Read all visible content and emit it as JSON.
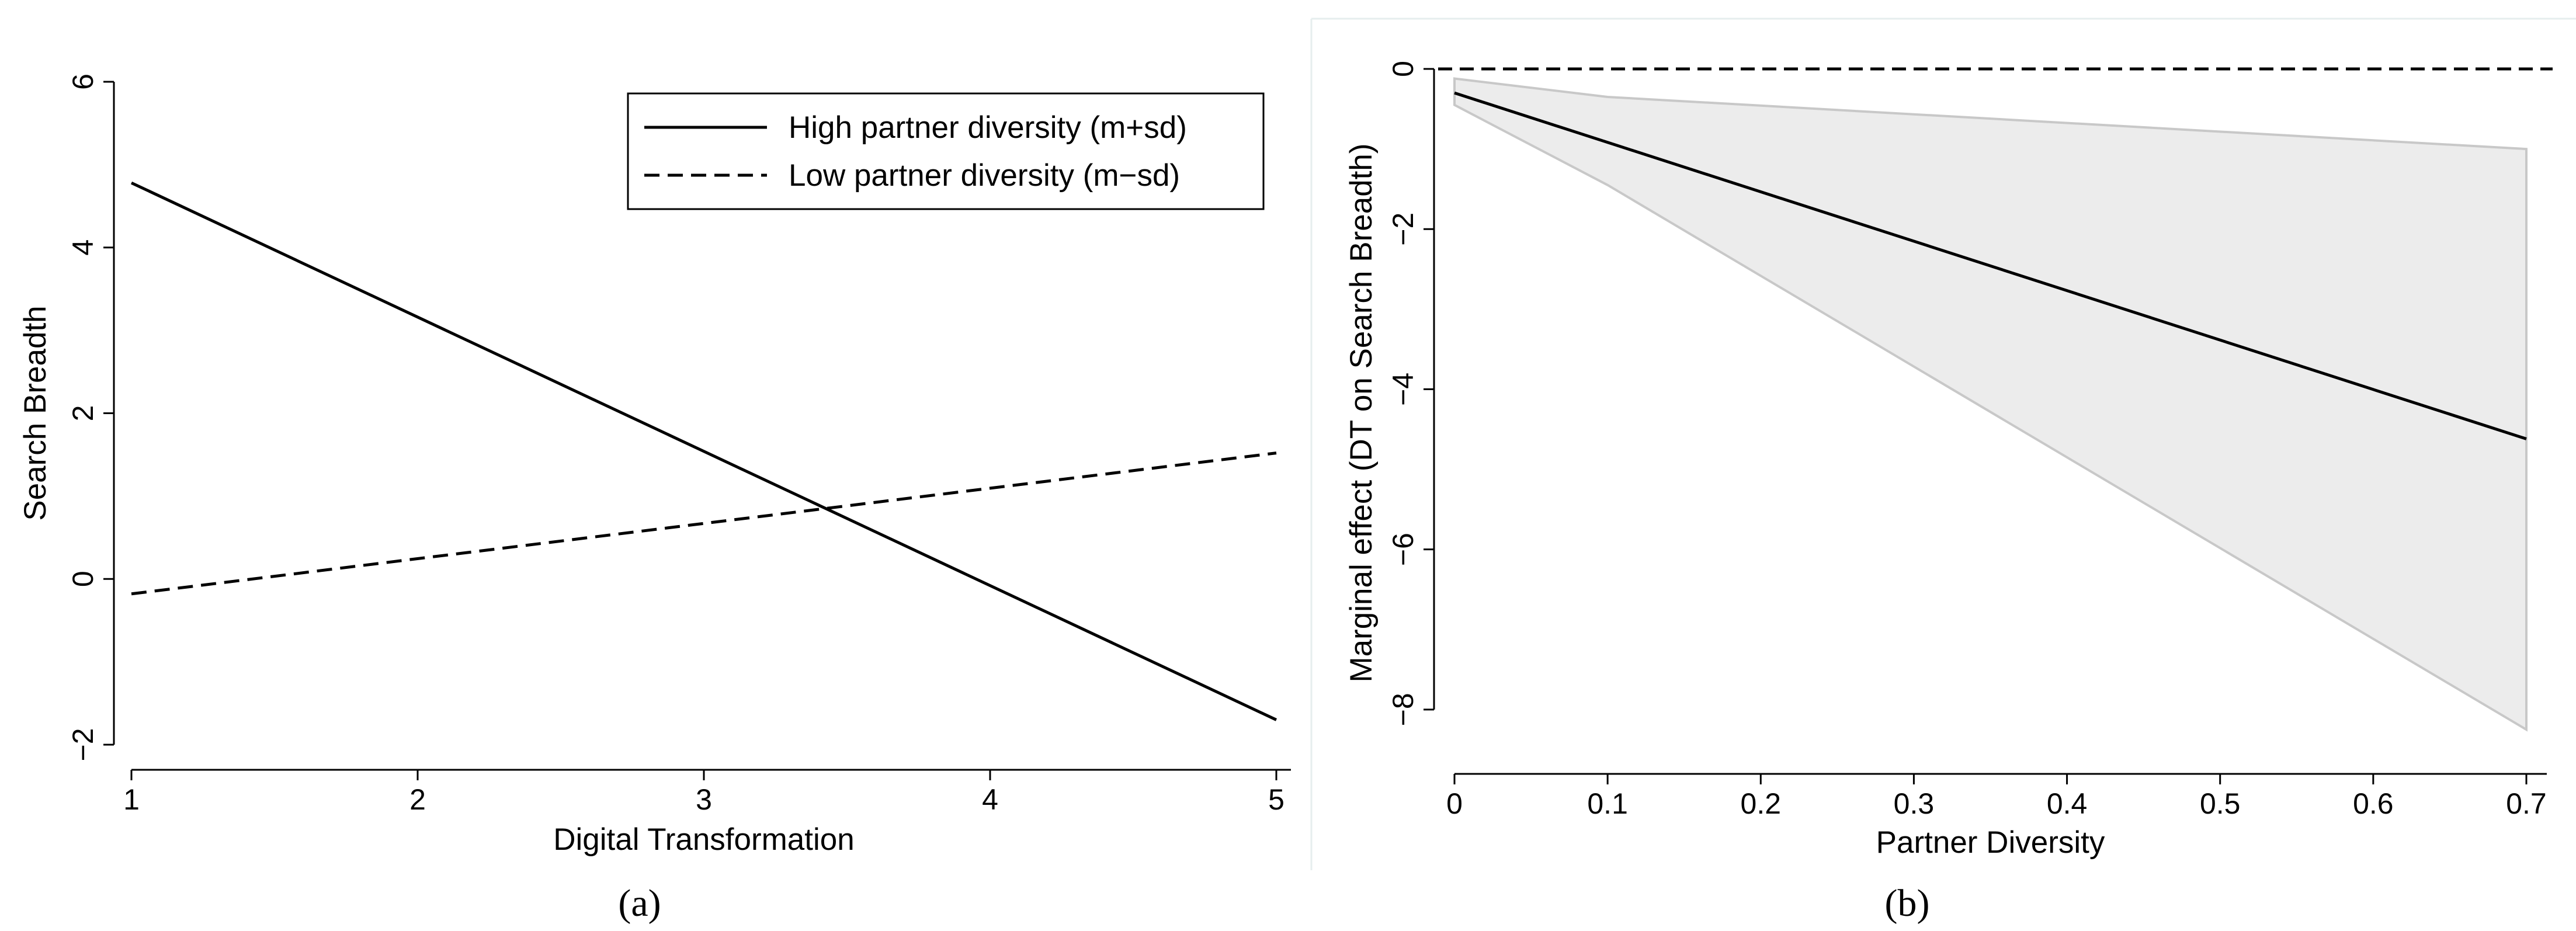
{
  "chart_data": [
    {
      "type": "line",
      "panel_label": "(a)",
      "xlabel": "Digital Transformation",
      "ylabel": "Search Breadth",
      "xlim": [
        1,
        5
      ],
      "ylim": [
        -2,
        6
      ],
      "xticks": [
        "1",
        "2",
        "3",
        "4",
        "5"
      ],
      "yticks": [
        "−2",
        "0",
        "2",
        "4",
        "6"
      ],
      "grid": false,
      "legend_position": "top-right",
      "series": [
        {
          "name": "High partner diversity (m+sd)",
          "style": "solid",
          "x": [
            1,
            5
          ],
          "y": [
            4.78,
            -1.7
          ]
        },
        {
          "name": "Low partner diversity (m−sd)",
          "style": "dashed",
          "x": [
            1,
            5
          ],
          "y": [
            -0.18,
            1.52
          ]
        }
      ]
    },
    {
      "type": "line",
      "panel_label": "(b)",
      "xlabel": "Partner Diversity",
      "ylabel": "Marginal effect (DT on Search Breadth)",
      "xlim": [
        0,
        0.7
      ],
      "ylim": [
        -8.3,
        0
      ],
      "xticks": [
        "0",
        "0.1",
        "0.2",
        "0.3",
        "0.4",
        "0.5",
        "0.6",
        "0.7"
      ],
      "yticks": [
        "0",
        "−2",
        "−4",
        "−6",
        "−8"
      ],
      "grid": false,
      "reference_line": {
        "y": 0,
        "style": "dashed"
      },
      "series": [
        {
          "name": "",
          "style": "solid",
          "x": [
            0,
            0.7
          ],
          "y": [
            -0.3,
            -4.62
          ]
        }
      ],
      "confidence_band": {
        "x": [
          0,
          0.1,
          0.7
        ],
        "upper": [
          -0.12,
          -0.35,
          -1.0
        ],
        "lower": [
          -0.45,
          -1.45,
          -8.25
        ]
      }
    }
  ]
}
